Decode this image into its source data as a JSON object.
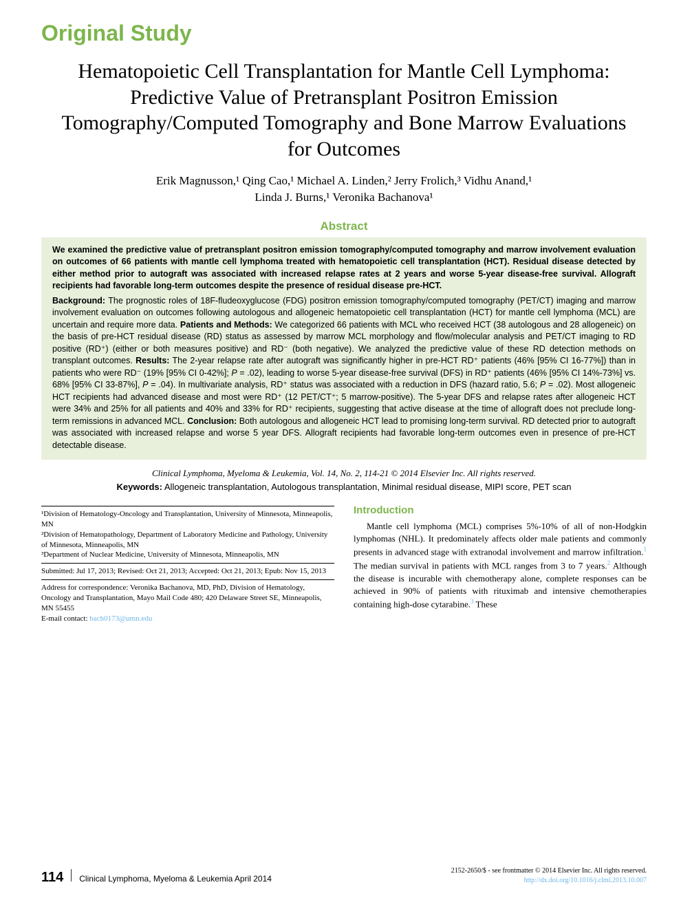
{
  "colors": {
    "accent": "#7db54c",
    "link": "#6bb5e8",
    "abstract_bg": "#e8f0dc",
    "text": "#000000",
    "page_bg": "#ffffff"
  },
  "section_label": "Original Study",
  "title": "Hematopoietic Cell Transplantation for Mantle Cell Lymphoma: Predictive Value of Pretransplant Positron Emission Tomography/Computed Tomography and Bone Marrow Evaluations for Outcomes",
  "authors_line1": "Erik Magnusson,¹ Qing Cao,¹ Michael A. Linden,² Jerry Frolich,³ Vidhu Anand,¹",
  "authors_line2": "Linda J. Burns,¹ Veronika Bachanova¹",
  "abstract_label": "Abstract",
  "abstract_lead": "We examined the predictive value of pretransplant positron emission tomography/computed tomography and marrow involvement evaluation on outcomes of 66 patients with mantle cell lymphoma treated with hematopoietic cell transplantation (HCT). Residual disease detected by either method prior to autograft was associated with increased relapse rates at 2 years and worse 5-year disease-free survival. Allograft recipients had favorable long-term outcomes despite the presence of residual disease pre-HCT.",
  "abstract_body": "<b>Background:</b> The prognostic roles of 18F-fludeoxyglucose (FDG) positron emission tomography/computed tomography (PET/CT) imaging and marrow involvement evaluation on outcomes following autologous and allogeneic hematopoietic cell transplantation (HCT) for mantle cell lymphoma (MCL) are uncertain and require more data. <b>Patients and Methods:</b> We categorized 66 patients with MCL who received HCT (38 autologous and 28 allogeneic) on the basis of pre-HCT residual disease (RD) status as assessed by marrow MCL morphology and flow/molecular analysis and PET/CT imaging to RD positive (RD⁺) (either or both measures positive) and RD⁻ (both negative). We analyzed the predictive value of these RD detection methods on transplant outcomes. <b>Results:</b> The 2-year relapse rate after autograft was significantly higher in pre-HCT RD⁺ patients (46% [95% CI 16-77%]) than in patients who were RD⁻ (19% [95% CI 0-42%]; <i>P</i> = .02), leading to worse 5-year disease-free survival (DFS) in RD⁺ patients (46% [95% CI 14%-73%] vs. 68% [95% CI 33-87%], <i>P</i> = .04). In multivariate analysis, RD⁺ status was associated with a reduction in DFS (hazard ratio, 5.6; <i>P</i> = .02). Most allogeneic HCT recipients had advanced disease and most were RD⁺ (12 PET/CT⁺; 5 marrow-positive). The 5-year DFS and relapse rates after allogeneic HCT were 34% and 25% for all patients and 40% and 33% for RD⁺ recipients, suggesting that active disease at the time of allograft does not preclude long-term remissions in advanced MCL. <b>Conclusion:</b> Both autologous and allogeneic HCT lead to promising long-term survival. RD detected prior to autograft was associated with increased relapse and worse 5 year DFS. Allograft recipients had favorable long-term outcomes even in presence of pre-HCT detectable disease.",
  "citation": "Clinical Lymphoma, Myeloma & Leukemia, Vol. 14, No. 2, 114-21 © 2014 Elsevier Inc. All rights reserved.",
  "keywords_label": "Keywords:",
  "keywords_text": " Allogeneic transplantation, Autologous transplantation, Minimal residual disease, MIPI score, PET scan",
  "affiliations": {
    "a1": "¹Division of Hematology-Oncology and Transplantation, University of Minnesota, Minneapolis, MN",
    "a2": "²Division of Hematopathology, Department of Laboratory Medicine and Pathology, University of Minnesota, Minneapolis, MN",
    "a3": "³Department of Nuclear Medicine, University of Minnesota, Minneapolis, MN"
  },
  "dates": "Submitted: Jul 17, 2013; Revised: Oct 21, 2013; Accepted: Oct 21, 2013; Epub: Nov 15, 2013",
  "correspondence": "Address for correspondence: Veronika Bachanova, MD, PhD, Division of Hematology, Oncology and Transplantation, Mayo Mail Code 480; 420 Delaware Street SE, Minneapolis, MN 55455",
  "email_label": "E-mail contact: ",
  "email": "bach0173@umn.edu",
  "intro_label": "Introduction",
  "intro_text": "Mantle cell lymphoma (MCL) comprises 5%-10% of all of non-Hodgkin lymphomas (NHL). It predominately affects older male patients and commonly presents in advanced stage with extranodal involvement and marrow infiltration.",
  "intro_text2": " The median survival in patients with MCL ranges from 3 to 7 years.",
  "intro_text3": " Although the disease is incurable with chemotherapy alone, complete responses can be achieved in 90% of patients with rituximab and intensive chemotherapies containing high-dose cytarabine.",
  "intro_text4": " These",
  "page_number": "114",
  "journal_footer": "Clinical Lymphoma, Myeloma & Leukemia  April 2014",
  "copyright_line1": "2152-2650/$ - see frontmatter © 2014 Elsevier Inc. All rights reserved.",
  "doi": "http://dx.doi.org/10.1016/j.clml.2013.10.007"
}
